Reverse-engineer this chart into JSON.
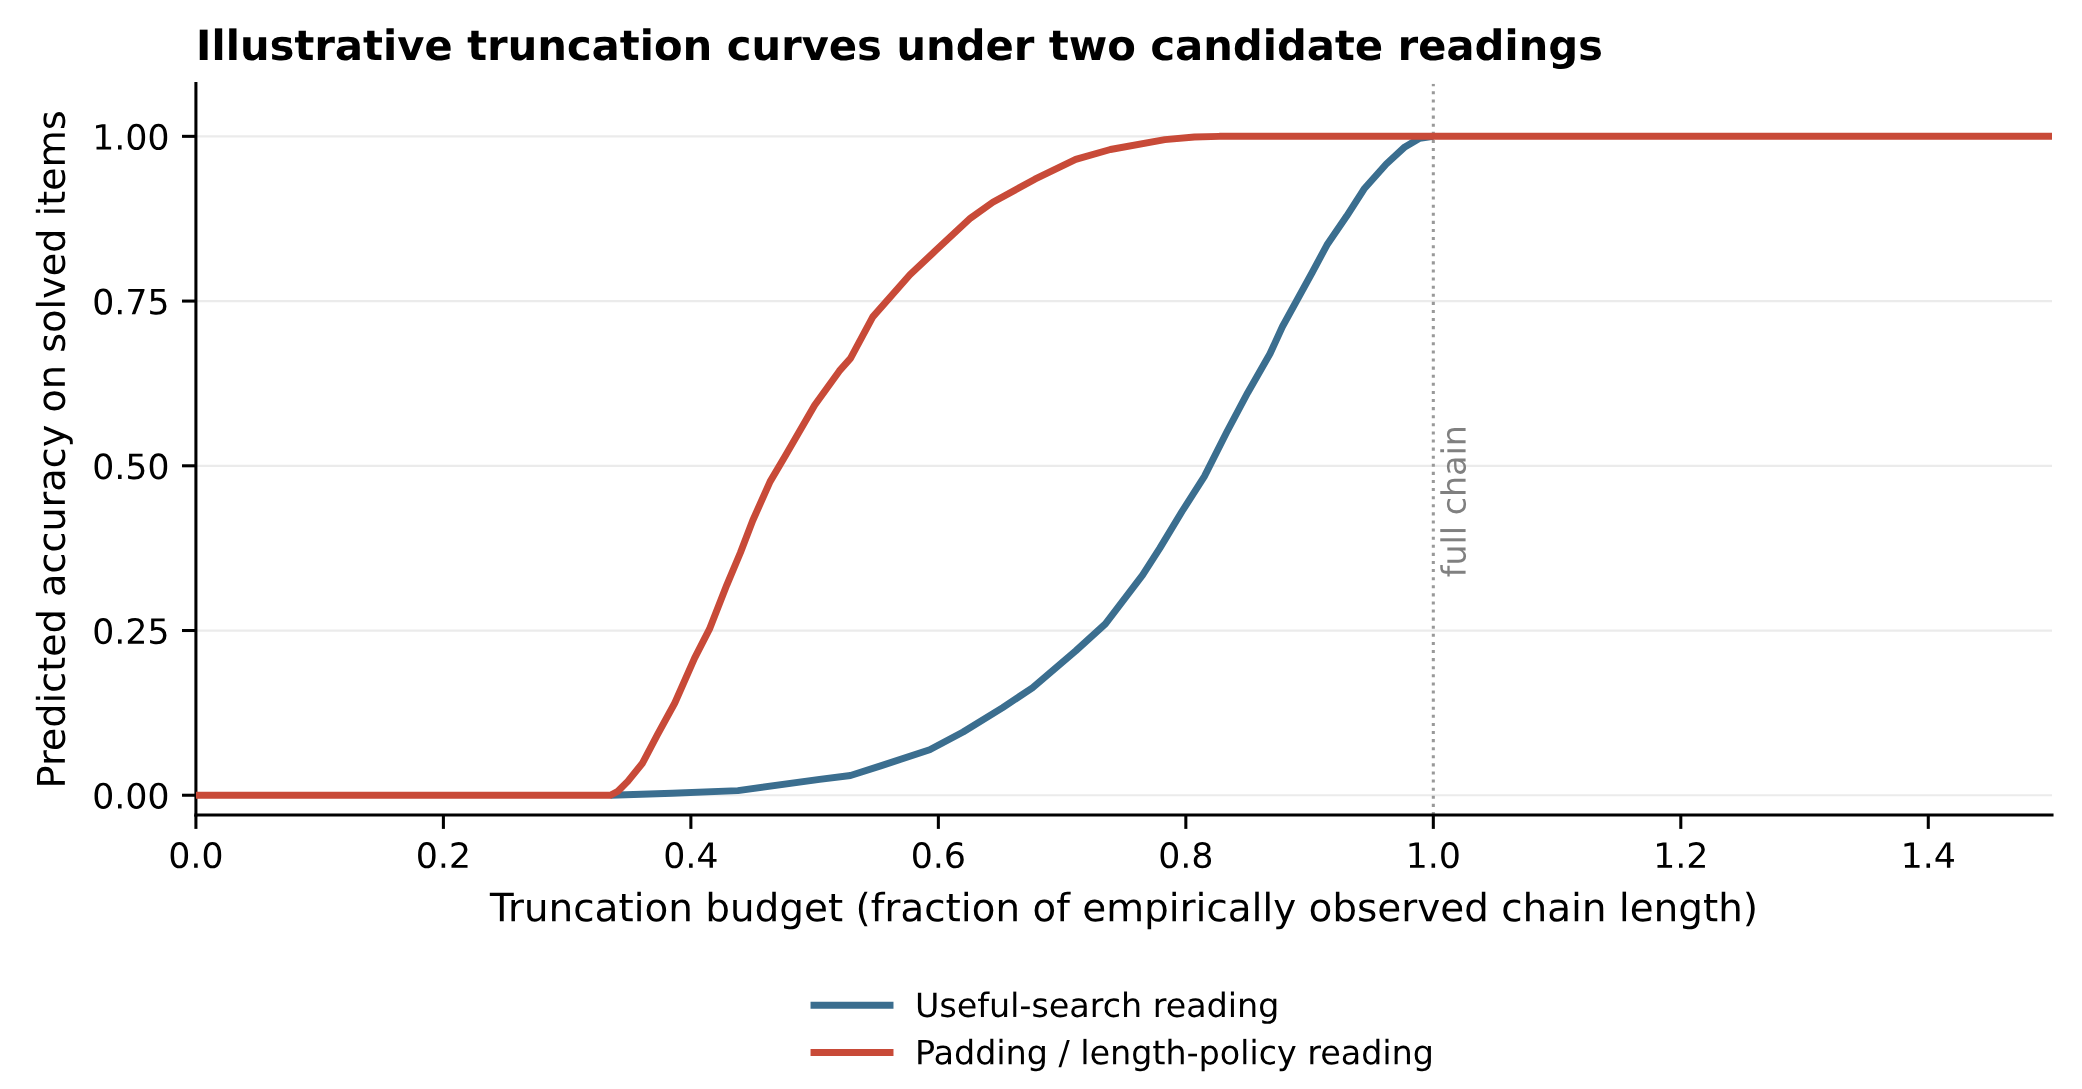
{
  "chart_data": {
    "type": "line",
    "title": "Illustrative truncation curves under two candidate readings",
    "xlabel": "Truncation budget (fraction of empirically observed chain length)",
    "ylabel": "Predicted accuracy on solved items",
    "xlim": [
      0,
      1.5
    ],
    "ylim": [
      -0.03,
      1.08
    ],
    "xticks": [
      {
        "value": 0,
        "label": "0.0"
      },
      0.2,
      0.4,
      0.6,
      0.8,
      {
        "value": 1,
        "label": "1.0"
      },
      1.2,
      1.4
    ],
    "yticks": [
      {
        "value": 0,
        "label": "0.00"
      },
      0.25,
      {
        "value": 0.5,
        "label": "0.50"
      },
      0.75,
      {
        "value": 1,
        "label": "1.00"
      }
    ],
    "grid": "y",
    "legend": "bottom",
    "marker": "none",
    "line_style": "solid",
    "series": [
      {
        "name": "Useful-search reading",
        "color": "#3b6e8f",
        "x": [
          0.335,
          0.385,
          0.438,
          0.504,
          0.529,
          0.554,
          0.593,
          0.62,
          0.652,
          0.676,
          0.711,
          0.735,
          0.765,
          0.779,
          0.797,
          0.815,
          0.833,
          0.85,
          0.868,
          0.878,
          0.902,
          0.914,
          0.93,
          0.944,
          0.962,
          0.977,
          0.989,
          1.0
        ],
        "values": [
          0,
          0.003,
          0.007,
          0.024,
          0.03,
          0.045,
          0.069,
          0.096,
          0.133,
          0.163,
          0.219,
          0.26,
          0.334,
          0.375,
          0.431,
          0.484,
          0.551,
          0.611,
          0.67,
          0.711,
          0.793,
          0.835,
          0.879,
          0.92,
          0.958,
          0.984,
          0.997,
          1.0
        ]
      },
      {
        "name": "Padding / length-policy reading",
        "color": "#c84a38",
        "x": [
          0,
          0.335,
          0.341,
          0.349,
          0.361,
          0.373,
          0.387,
          0.403,
          0.415,
          0.429,
          0.44,
          0.45,
          0.464,
          0.476,
          0.5,
          0.52,
          0.529,
          0.547,
          0.577,
          0.598,
          0.626,
          0.644,
          0.678,
          0.711,
          0.739,
          0.783,
          0.807,
          0.827,
          1.5
        ],
        "values": [
          0,
          0,
          0.006,
          0.021,
          0.049,
          0.092,
          0.14,
          0.208,
          0.252,
          0.319,
          0.368,
          0.417,
          0.476,
          0.514,
          0.592,
          0.644,
          0.663,
          0.726,
          0.79,
          0.827,
          0.876,
          0.9,
          0.935,
          0.965,
          0.98,
          0.995,
          0.999,
          1.0,
          1.0
        ]
      }
    ],
    "ref_lines": [
      {
        "axis": "x",
        "value": 1.0,
        "label": "full chain",
        "color": "#999999",
        "line_style": "dotted"
      }
    ]
  }
}
